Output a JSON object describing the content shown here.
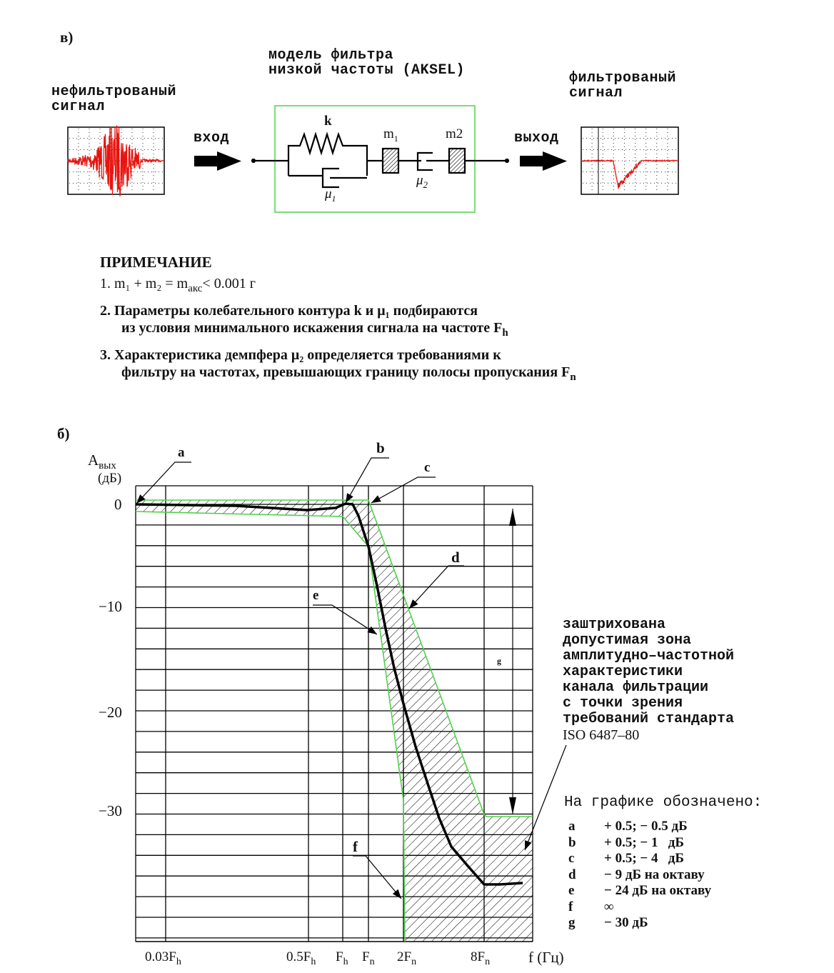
{
  "part_a": {
    "label": "в)",
    "model_title_1": "модель фильтра",
    "model_title_2": "низкой частоты (AKSEL)",
    "input_signal_1": "нефильтрованый",
    "input_signal_2": "сигнал",
    "output_signal_1": "фильтрованый",
    "output_signal_2": "сигнал",
    "input_label": "вход",
    "output_label": "выход",
    "spring_label": "k",
    "damper1_label": "μ",
    "damper1_sub": "1",
    "damper2_label": "μ",
    "damper2_sub": "2",
    "mass1_label": "m",
    "mass1_sub": "1",
    "mass2_label": "m2",
    "signal_color": "#e8140f",
    "box_color": "#4fd24a"
  },
  "notes": {
    "title": "ПРИМЕЧАНИЕ",
    "n1_prefix": "1.",
    "n1_text": "m₁ + m₂ = m",
    "n1_sub": "акс",
    "n1_tail": "< 0.001 г",
    "n2_prefix": "2.",
    "n2_line1": "Параметры колебательного контура    k   и   μ₁ подбираются",
    "n2_line2": "из условия минимального искажения сигнала на частоте  F",
    "n2_sub": "h",
    "n3_prefix": "3.",
    "n3_line1": "Характеристика демпфера μ₂ определяется требованиями к",
    "n3_line2": "фильтру на частотах, превышающих границу полосы пропускания F",
    "n3_sub": "n"
  },
  "part_b": {
    "label": "б)",
    "y_label": "A",
    "y_label_sub": "вых",
    "y_unit": "(дБ)",
    "x_label": "f (Гц)",
    "y_ticks": [
      "0",
      "−10",
      "−20",
      "−30"
    ],
    "x_ticks": [
      {
        "main": "0.03F",
        "sub": "h"
      },
      {
        "main": "0.5F",
        "sub": "h"
      },
      {
        "main": "F",
        "sub": "h"
      },
      {
        "main": "F",
        "sub": "n"
      },
      {
        "main": "2F",
        "sub": "n"
      },
      {
        "main": "8F",
        "sub": "n"
      }
    ],
    "markers": [
      "a",
      "b",
      "c",
      "d",
      "e",
      "f",
      "g"
    ],
    "boundary_color": "#4fd24a",
    "curve_color": "#000000",
    "description": [
      "заштрихована",
      "допустимая зона",
      "амплитудно–частотной",
      "характеристики",
      "канала фильтрации",
      "с точки зрения",
      "требований стандарта",
      "ISO 6487–80"
    ],
    "legend_title": "На графике обозначено:",
    "legend": [
      {
        "key": "a",
        "value": "+ 0.5; − 0.5 дБ"
      },
      {
        "key": "b",
        "value": "+ 0.5; − 1   дБ"
      },
      {
        "key": "c",
        "value": "+ 0.5; − 4   дБ"
      },
      {
        "key": "d",
        "value": "− 9 дБ на октаву"
      },
      {
        "key": "e",
        "value": "− 24 дБ на октаву"
      },
      {
        "key": "f",
        "value": "∞"
      },
      {
        "key": "g",
        "value": "− 30 дБ"
      }
    ]
  }
}
